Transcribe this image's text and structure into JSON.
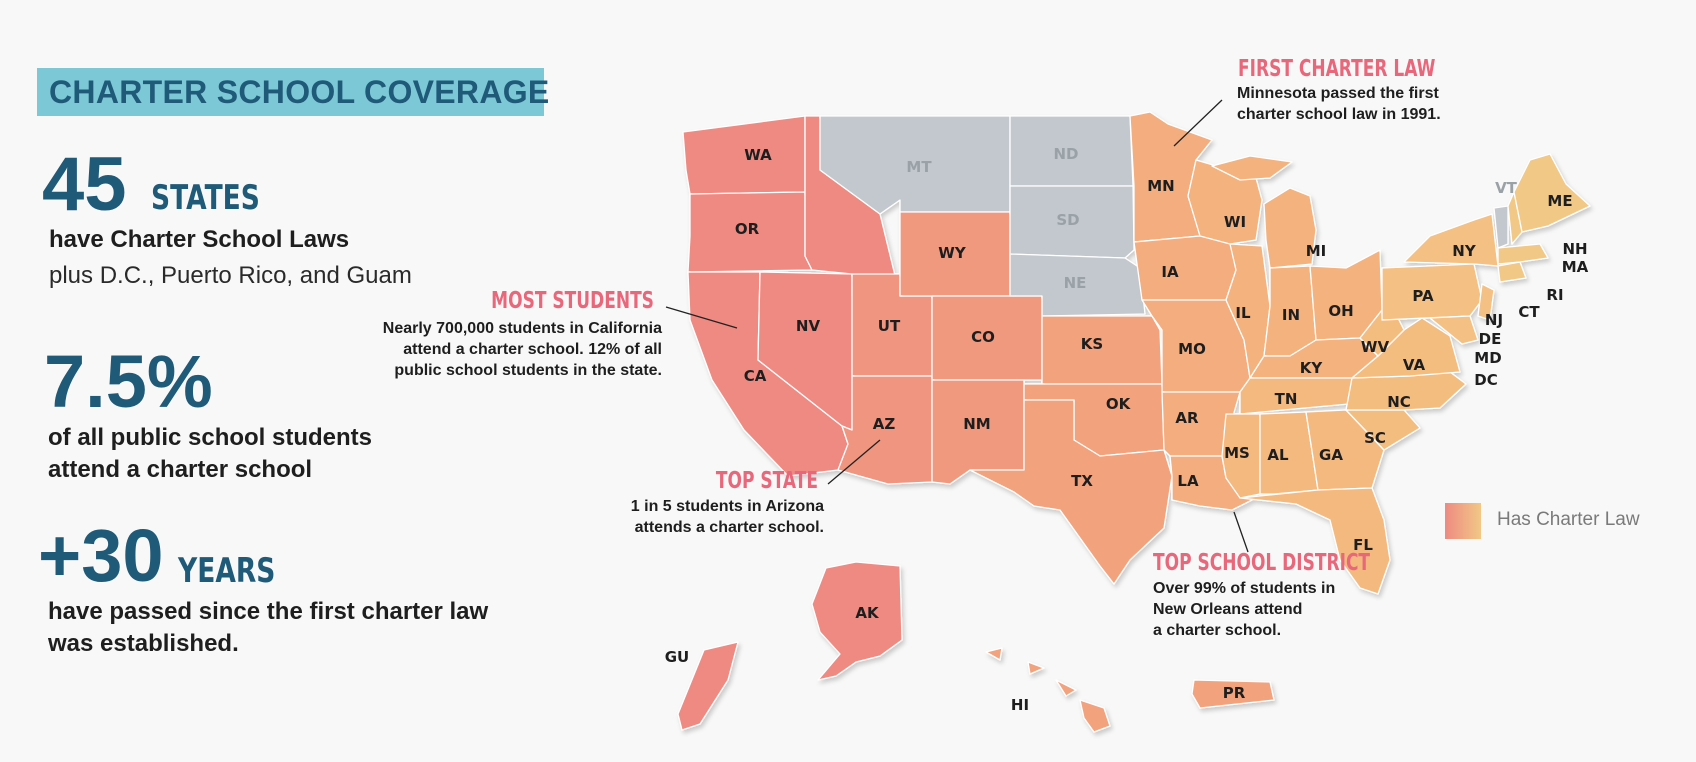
{
  "header": {
    "title": "CHARTER SCHOOL COVERAGE"
  },
  "stats": [
    {
      "value": "45",
      "unit": "STATES",
      "line1": "have Charter School Laws",
      "line2": "plus D.C., Puerto Rico, and Guam"
    },
    {
      "value": "7.5%",
      "unit": "",
      "line1": "of all public school students",
      "line2": "attend a charter school"
    },
    {
      "value": "+30",
      "unit": "YEARS",
      "line1": "have passed since the first charter law",
      "line2": "was established."
    }
  ],
  "callouts": {
    "first_law": {
      "heading": "FIRST CHARTER LAW",
      "lines": [
        "Minnesota passed the first",
        "charter school law in 1991."
      ]
    },
    "most_students": {
      "heading": "MOST STUDENTS",
      "lines": [
        "Nearly 700,000 students in California",
        "attend a charter school. 12% of all",
        "public school students in the state."
      ]
    },
    "top_state": {
      "heading": "TOP STATE",
      "lines": [
        "1 in 5 students in Arizona",
        "attends a charter school."
      ]
    },
    "top_district": {
      "heading": "TOP SCHOOL DISTRICT",
      "lines": [
        "Over 99% of students in",
        "New Orleans attend",
        "a charter school."
      ]
    }
  },
  "legend": {
    "label": "Has Charter Law",
    "gradient_start": "#ee8a82",
    "gradient_end": "#f1c886"
  },
  "map": {
    "colors": {
      "west": "#ee8a82",
      "central": "#f2a27c",
      "east": "#f3b67e",
      "northeast": "#f1c886",
      "no_law": "#c2c8cd"
    },
    "states_with_law": [
      "WA",
      "OR",
      "CA",
      "NV",
      "ID",
      "UT",
      "AZ",
      "WY",
      "CO",
      "NM",
      "TX",
      "OK",
      "KS",
      "MN",
      "IA",
      "MO",
      "AR",
      "LA",
      "WI",
      "IL",
      "MI",
      "IN",
      "OH",
      "KY",
      "TN",
      "MS",
      "AL",
      "GA",
      "FL",
      "SC",
      "NC",
      "VA",
      "WV",
      "PA",
      "NY",
      "ME",
      "NH",
      "MA",
      "RI",
      "CT",
      "NJ",
      "DE",
      "MD",
      "DC",
      "AK",
      "HI",
      "PR",
      "GU"
    ],
    "states_without_law": [
      "MT",
      "ND",
      "SD",
      "NE",
      "VT"
    ],
    "labels": [
      "WA",
      "OR",
      "CA",
      "NV",
      "UT",
      "AZ",
      "WY",
      "CO",
      "NM",
      "MT",
      "ND",
      "SD",
      "NE",
      "KS",
      "OK",
      "TX",
      "MN",
      "IA",
      "MO",
      "AR",
      "LA",
      "WI",
      "IL",
      "MI",
      "IN",
      "OH",
      "KY",
      "TN",
      "MS",
      "AL",
      "GA",
      "FL",
      "SC",
      "NC",
      "VA",
      "WV",
      "PA",
      "NY",
      "VT",
      "ME",
      "NH",
      "MA",
      "RI",
      "CT",
      "NJ",
      "DE",
      "MD",
      "DC",
      "AK",
      "HI",
      "PR",
      "GU"
    ]
  }
}
